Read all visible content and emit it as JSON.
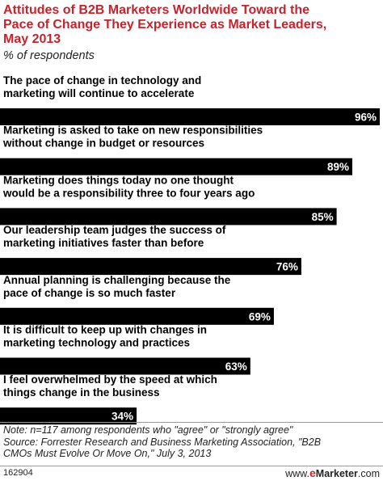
{
  "chart_data": {
    "type": "bar",
    "orientation": "horizontal",
    "title": "Attitudes of B2B Marketers Worldwide Toward the Pace of Change They Experience as Market Leaders, May 2013",
    "subtitle": "% of respondents",
    "categories": [
      "The pace of change in technology and marketing will continue to accelerate",
      "Marketing is asked to take on new responsibilities without change in budget or resources",
      "Marketing does things today no one thought would be a responsibility three to four years ago",
      "Our leadership team judges the success of marketing initiatives faster than before",
      "Annual planning is challenging because the pace of change is so much faster",
      "It is difficult to keep up with changes in marketing technology and practices",
      "I feel overwhelmed by the speed at which things change in the business"
    ],
    "category_lines": [
      [
        "The pace of change in technology and",
        "marketing will continue to accelerate"
      ],
      [
        "Marketing is asked to take on new responsibilities",
        "without change in budget or resources"
      ],
      [
        "Marketing does things today no one thought",
        "would be a responsibility three to four years ago"
      ],
      [
        "Our leadership team judges the success of",
        "marketing initiatives faster than before"
      ],
      [
        "Annual planning is challenging because the",
        "pace of change is so much faster"
      ],
      [
        "It is difficult to keep up with changes in",
        "marketing technology and practices"
      ],
      [
        "I feel overwhelmed by the speed at which",
        "things change in the business"
      ]
    ],
    "values": [
      96,
      89,
      85,
      76,
      69,
      63,
      34
    ],
    "value_labels": [
      "96%",
      "89%",
      "85%",
      "76%",
      "69%",
      "63%",
      "34%"
    ],
    "xlim": [
      0,
      96
    ],
    "bar_color": "#000000",
    "grid": false
  },
  "title_text": "Attitudes of B2B Marketers Worldwide Toward the\nPace of Change They Experience as Market Leaders,\nMay 2013",
  "subtitle_text": "% of respondents",
  "note_text": "Note: n=117 among respondents who \"agree\" or \"strongly agree\"\nSource: Forrester Research and Business Marketing Association, \"B2B\nCMOs Must Evolve Or Move On,\" July 3, 2013",
  "chart_id": "162904",
  "brand": {
    "prefix": "www.",
    "e": "e",
    "name": "Marketer",
    "suffix": ".com"
  },
  "colors": {
    "title": "#c4242d",
    "bar": "#000000",
    "value_label": "#ffffff"
  }
}
